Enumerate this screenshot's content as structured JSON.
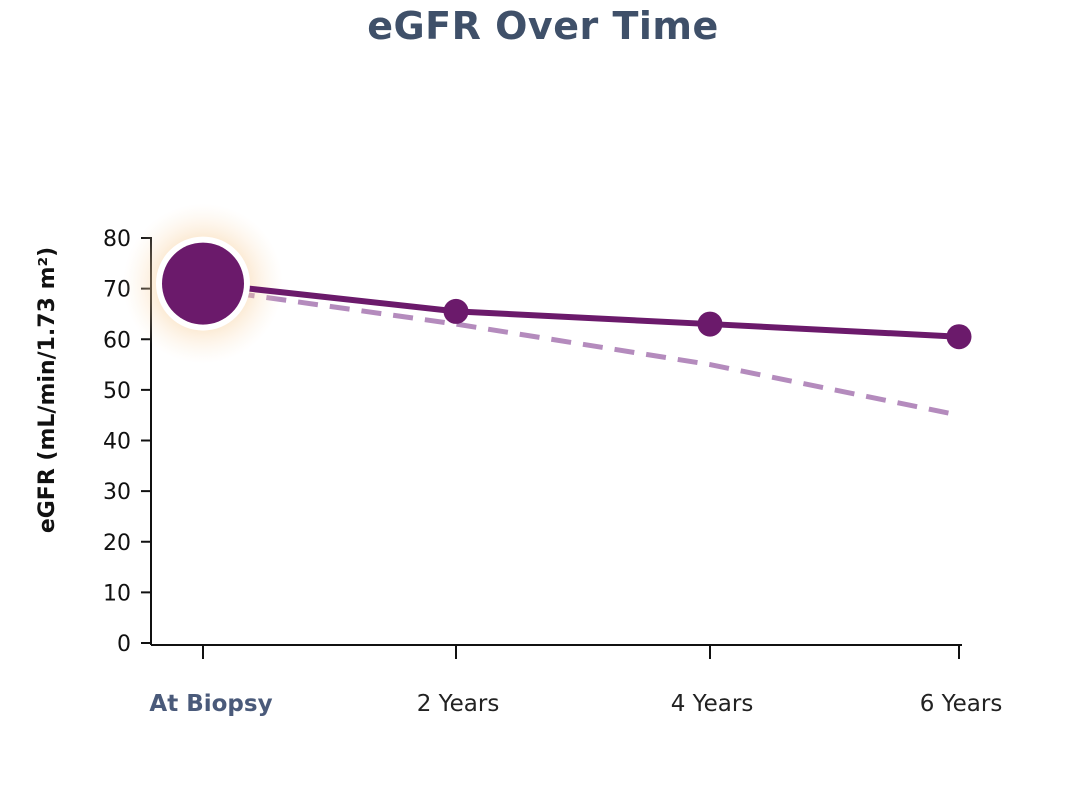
{
  "chart_data": {
    "type": "line",
    "title": "eGFR Over Time",
    "xlabel": "",
    "ylabel": "eGFR (mL/min/1.73 m²)",
    "categories": [
      "At Biopsy",
      "2 Years",
      "4 Years",
      "6 Years"
    ],
    "highlight_category": "At Biopsy",
    "yticks": [
      0,
      10,
      20,
      30,
      40,
      50,
      60,
      70,
      80
    ],
    "ylim": [
      0,
      80
    ],
    "grid": false,
    "series": [
      {
        "style": "solid-with-markers",
        "color": "#6b1a6b",
        "values": [
          71,
          65.5,
          63,
          60.5
        ]
      },
      {
        "style": "dashed",
        "color": "#b48bbd",
        "values": [
          70,
          63,
          55,
          45
        ]
      }
    ],
    "highlight_marker_glow": "#f5c98a"
  }
}
